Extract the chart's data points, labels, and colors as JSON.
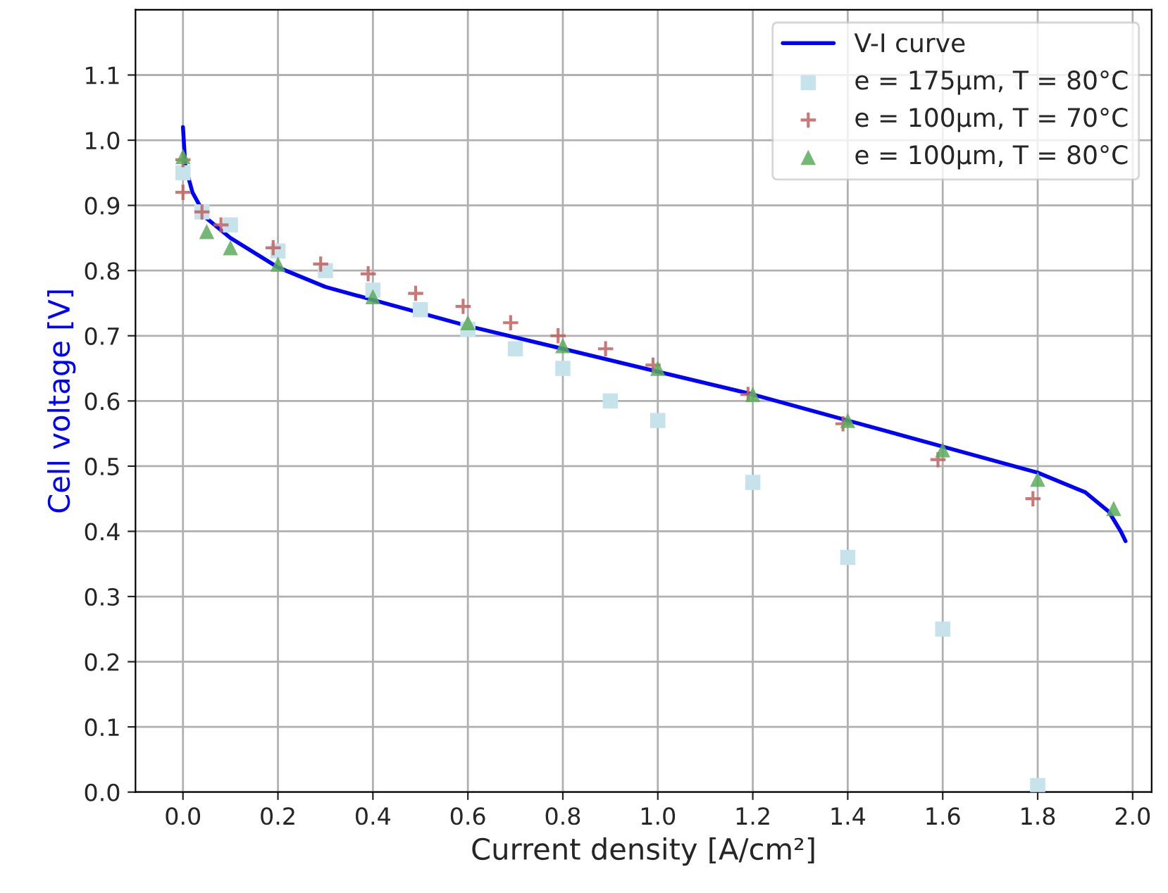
{
  "chart_data": {
    "type": "line",
    "xlabel": "Current density [A/cm²]",
    "ylabel": "Cell voltage [V]",
    "xlim": [
      -0.1,
      2.04
    ],
    "ylim": [
      0,
      1.2
    ],
    "xticks": [
      {
        "value": 0,
        "label": "0.0"
      },
      {
        "value": 0.2,
        "label": "0.2"
      },
      {
        "value": 0.4,
        "label": "0.4"
      },
      {
        "value": 0.6,
        "label": "0.6"
      },
      {
        "value": 0.8,
        "label": "0.8"
      },
      {
        "value": 1.0,
        "label": "1.0"
      },
      {
        "value": 1.2,
        "label": "1.2"
      },
      {
        "value": 1.4,
        "label": "1.4"
      },
      {
        "value": 1.6,
        "label": "1.6"
      },
      {
        "value": 1.8,
        "label": "1.8"
      },
      {
        "value": 2.0,
        "label": "2.0"
      }
    ],
    "yticks": [
      {
        "value": 0,
        "label": "0.0"
      },
      {
        "value": 0.1,
        "label": "0.1"
      },
      {
        "value": 0.2,
        "label": "0.2"
      },
      {
        "value": 0.3,
        "label": "0.3"
      },
      {
        "value": 0.4,
        "label": "0.4"
      },
      {
        "value": 0.5,
        "label": "0.5"
      },
      {
        "value": 0.6,
        "label": "0.6"
      },
      {
        "value": 0.7,
        "label": "0.7"
      },
      {
        "value": 0.8,
        "label": "0.8"
      },
      {
        "value": 0.9,
        "label": "0.9"
      },
      {
        "value": 1.0,
        "label": "1.0"
      },
      {
        "value": 1.1,
        "label": "1.1"
      }
    ],
    "grid": true,
    "legend": "top right",
    "series": [
      {
        "name": "V-I curve",
        "color": "#0000ff",
        "marker": "none",
        "line_style": "solid",
        "x": [
          0,
          0.005,
          0.02,
          0.05,
          0.1,
          0.2,
          0.3,
          0.4,
          0.5,
          0.6,
          0.8,
          1.0,
          1.2,
          1.4,
          1.6,
          1.8,
          1.9,
          1.95,
          1.975,
          1.985
        ],
        "values": [
          1.02,
          0.96,
          0.92,
          0.88,
          0.85,
          0.805,
          0.775,
          0.755,
          0.735,
          0.715,
          0.68,
          0.645,
          0.61,
          0.57,
          0.53,
          0.49,
          0.46,
          0.43,
          0.4,
          0.385
        ]
      },
      {
        "name": "e = 175µm, T = 80°C",
        "type": "scatter",
        "color": "#c6e3ec",
        "marker": "square",
        "x": [
          0,
          0.04,
          0.1,
          0.2,
          0.3,
          0.4,
          0.5,
          0.6,
          0.7,
          0.8,
          0.9,
          1.0,
          1.2,
          1.4,
          1.6,
          1.8
        ],
        "values": [
          0.95,
          0.89,
          0.87,
          0.83,
          0.8,
          0.77,
          0.74,
          0.71,
          0.68,
          0.65,
          0.6,
          0.57,
          0.475,
          0.36,
          0.25,
          0.01
        ]
      },
      {
        "name": "e = 100µm, T = 70°C",
        "type": "scatter",
        "color": "#c06060",
        "marker": "plus",
        "x": [
          0,
          0,
          0.04,
          0.08,
          0.19,
          0.29,
          0.39,
          0.49,
          0.59,
          0.69,
          0.79,
          0.89,
          0.99,
          1.19,
          1.39,
          1.59,
          1.79
        ],
        "values": [
          0.97,
          0.92,
          0.89,
          0.87,
          0.835,
          0.81,
          0.795,
          0.765,
          0.745,
          0.72,
          0.7,
          0.68,
          0.655,
          0.61,
          0.565,
          0.51,
          0.45
        ]
      },
      {
        "name": "e = 100µm, T = 80°C",
        "type": "scatter",
        "color": "#5aab5a",
        "marker": "triangle",
        "x": [
          0,
          0.05,
          0.1,
          0.2,
          0.4,
          0.6,
          0.8,
          1.0,
          1.2,
          1.4,
          1.6,
          1.8,
          1.96
        ],
        "values": [
          0.975,
          0.86,
          0.835,
          0.81,
          0.76,
          0.72,
          0.685,
          0.65,
          0.61,
          0.57,
          0.525,
          0.48,
          0.435
        ]
      }
    ]
  }
}
